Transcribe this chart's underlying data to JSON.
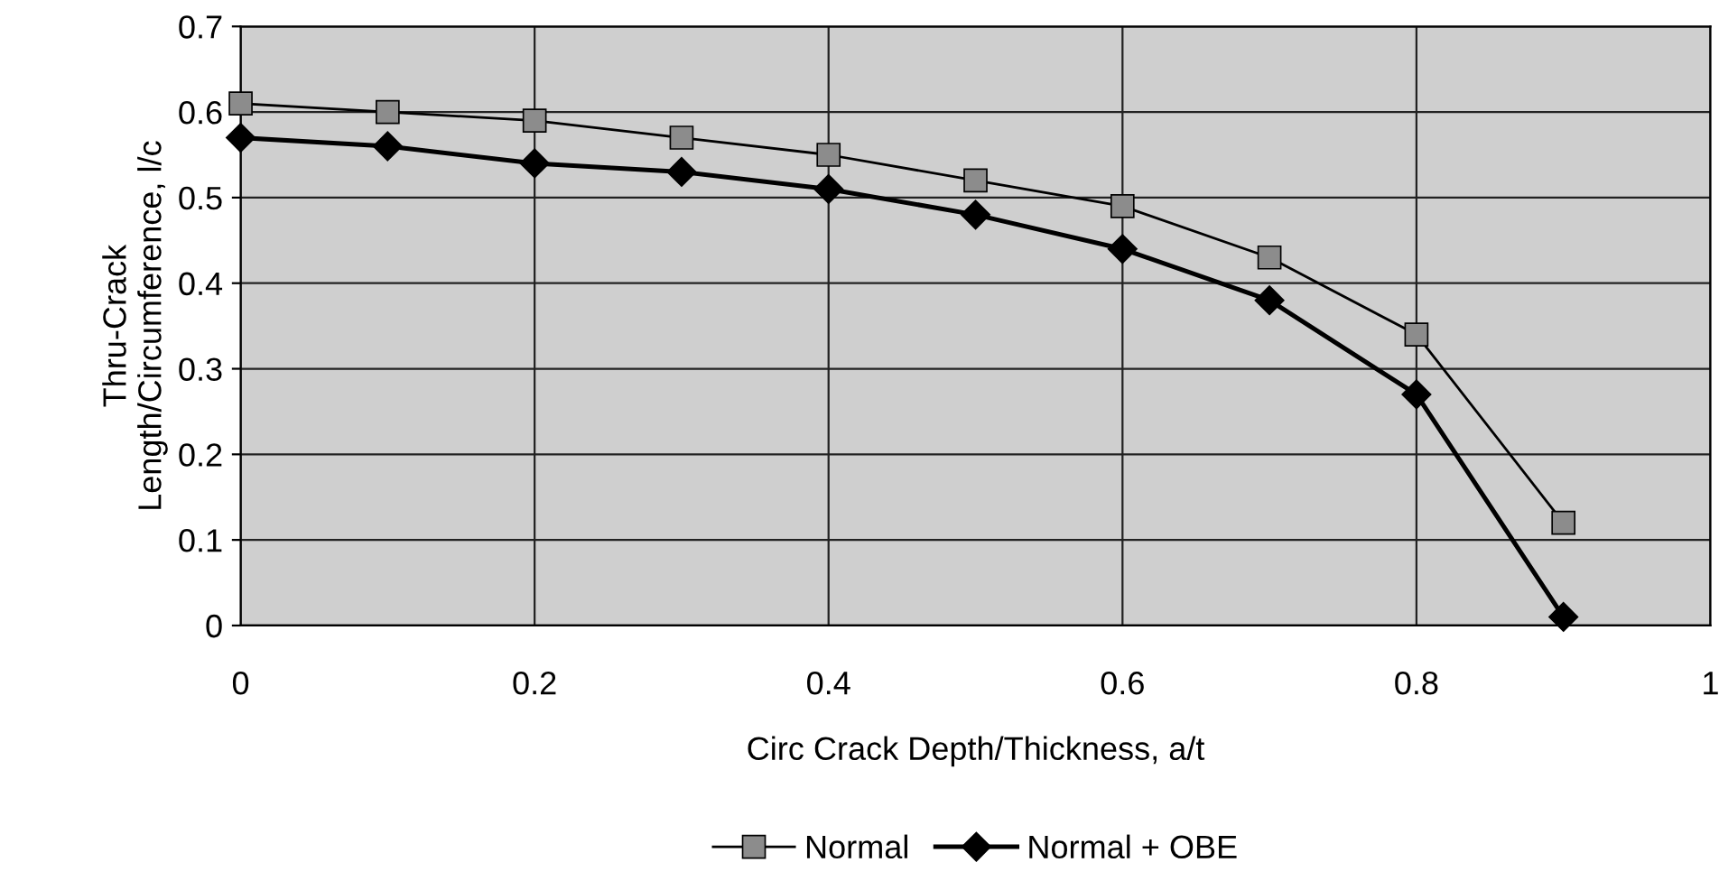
{
  "chart_data": {
    "type": "line",
    "xlabel": "Circ Crack Depth/Thickness, a/t",
    "ylabel": "Thru-Crack\nLength/Circumference, l/c",
    "x": [
      0,
      0.1,
      0.2,
      0.3,
      0.4,
      0.5,
      0.6,
      0.7,
      0.8,
      0.9
    ],
    "series": [
      {
        "name": "Normal",
        "color": "#8c8c8c",
        "marker": "square",
        "values": [
          0.61,
          0.6,
          0.59,
          0.57,
          0.55,
          0.52,
          0.49,
          0.43,
          0.34,
          0.12
        ]
      },
      {
        "name": "Normal + OBE",
        "color": "#000000",
        "marker": "diamond",
        "values": [
          0.57,
          0.56,
          0.54,
          0.53,
          0.51,
          0.48,
          0.44,
          0.38,
          0.27,
          0.01
        ]
      }
    ],
    "xlim": [
      0,
      1
    ],
    "xticks": [
      0,
      0.2,
      0.4,
      0.6,
      0.8,
      1
    ],
    "ylim": [
      0,
      0.7
    ],
    "yticks": [
      0,
      0.1,
      0.2,
      0.3,
      0.4,
      0.5,
      0.6,
      0.7
    ],
    "grid": true,
    "legend": "bottom",
    "line_style": "solid"
  }
}
